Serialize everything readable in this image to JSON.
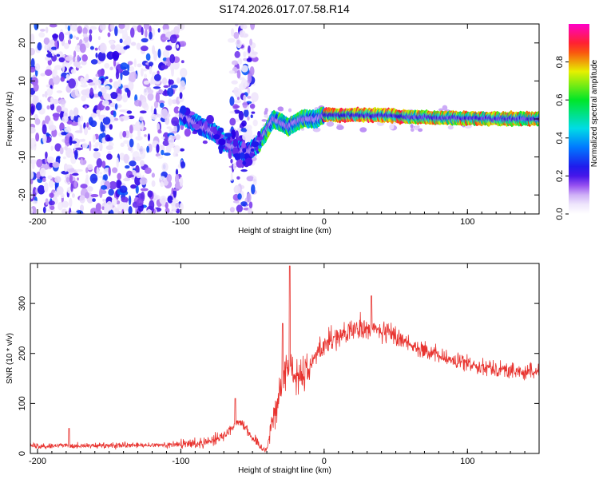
{
  "title": "S174.2026.017.07.58.R14",
  "colorbar": {
    "label": "Normalized spectral amplitude",
    "ticks": [
      0.0,
      0.2,
      0.4,
      0.6,
      0.8
    ],
    "tick_labels": [
      "0.0",
      "0.2",
      "0.4",
      "0.6",
      "0.8"
    ],
    "range": [
      0,
      1
    ]
  },
  "chart_data": [
    {
      "type": "heatmap",
      "panel": "spectrogram",
      "xlabel": "Height of straight line (km)",
      "ylabel": "Frequency (Hz)",
      "xlim": [
        -205,
        150
      ],
      "ylim": [
        -25,
        25
      ],
      "xticks": [
        -200,
        -100,
        0,
        100
      ],
      "xtick_labels": [
        "-200",
        "-100",
        "0",
        "100"
      ],
      "yticks": [
        -20,
        -10,
        0,
        10,
        20
      ],
      "ytick_labels": [
        "-20",
        "-10",
        "0",
        "10",
        "20"
      ],
      "noise_regions_km": [
        [
          -205,
          -98
        ],
        [
          -65,
          -48
        ]
      ],
      "signal_ridge": {
        "x": [
          -100,
          -95,
          -90,
          -85,
          -80,
          -75,
          -70,
          -65,
          -60,
          -55,
          -50,
          -45,
          -40,
          -35,
          -30,
          -25,
          -20,
          -15,
          -10,
          -5,
          0,
          10,
          20,
          40,
          60,
          80,
          100,
          120,
          150
        ],
        "y": [
          1,
          0,
          -1,
          -2,
          -3,
          -4,
          -6,
          -7,
          -8,
          -9,
          -8,
          -6,
          -3,
          0,
          -1,
          -2,
          -1,
          0,
          0,
          0,
          1,
          1,
          1,
          1,
          0.5,
          0.3,
          0.2,
          0.1,
          0
        ]
      }
    },
    {
      "type": "line",
      "panel": "snr",
      "xlabel": "Height of straight line (km)",
      "ylabel": "SNR (10 * v/v)",
      "xlim": [
        -205,
        150
      ],
      "ylim": [
        0,
        380
      ],
      "xticks": [
        -200,
        -100,
        0,
        100
      ],
      "xtick_labels": [
        "-200",
        "-100",
        "0",
        "100"
      ],
      "yticks": [
        0,
        100,
        200,
        300
      ],
      "ytick_labels": [
        "0",
        "100",
        "200",
        "300"
      ],
      "color": "#e8332f",
      "envelope": {
        "x": [
          -205,
          -180,
          -160,
          -140,
          -120,
          -100,
          -90,
          -80,
          -70,
          -65,
          -60,
          -55,
          -50,
          -45,
          -42,
          -40,
          -38,
          -35,
          -32,
          -30,
          -28,
          -25,
          -22,
          -20,
          -15,
          -10,
          -5,
          0,
          10,
          20,
          30,
          40,
          50,
          60,
          70,
          80,
          90,
          100,
          110,
          120,
          130,
          140,
          150
        ],
        "y": [
          15,
          16,
          15,
          16,
          16,
          18,
          20,
          25,
          35,
          50,
          65,
          55,
          30,
          15,
          8,
          10,
          40,
          80,
          110,
          120,
          160,
          175,
          170,
          155,
          160,
          175,
          200,
          220,
          235,
          245,
          250,
          245,
          235,
          220,
          205,
          195,
          185,
          180,
          175,
          170,
          165,
          162,
          165
        ]
      },
      "spikes": [
        {
          "x": -24,
          "y": 375
        },
        {
          "x": -29,
          "y": 260
        },
        {
          "x": 33,
          "y": 315
        },
        {
          "x": -62,
          "y": 110
        },
        {
          "x": -178,
          "y": 50
        }
      ]
    }
  ]
}
